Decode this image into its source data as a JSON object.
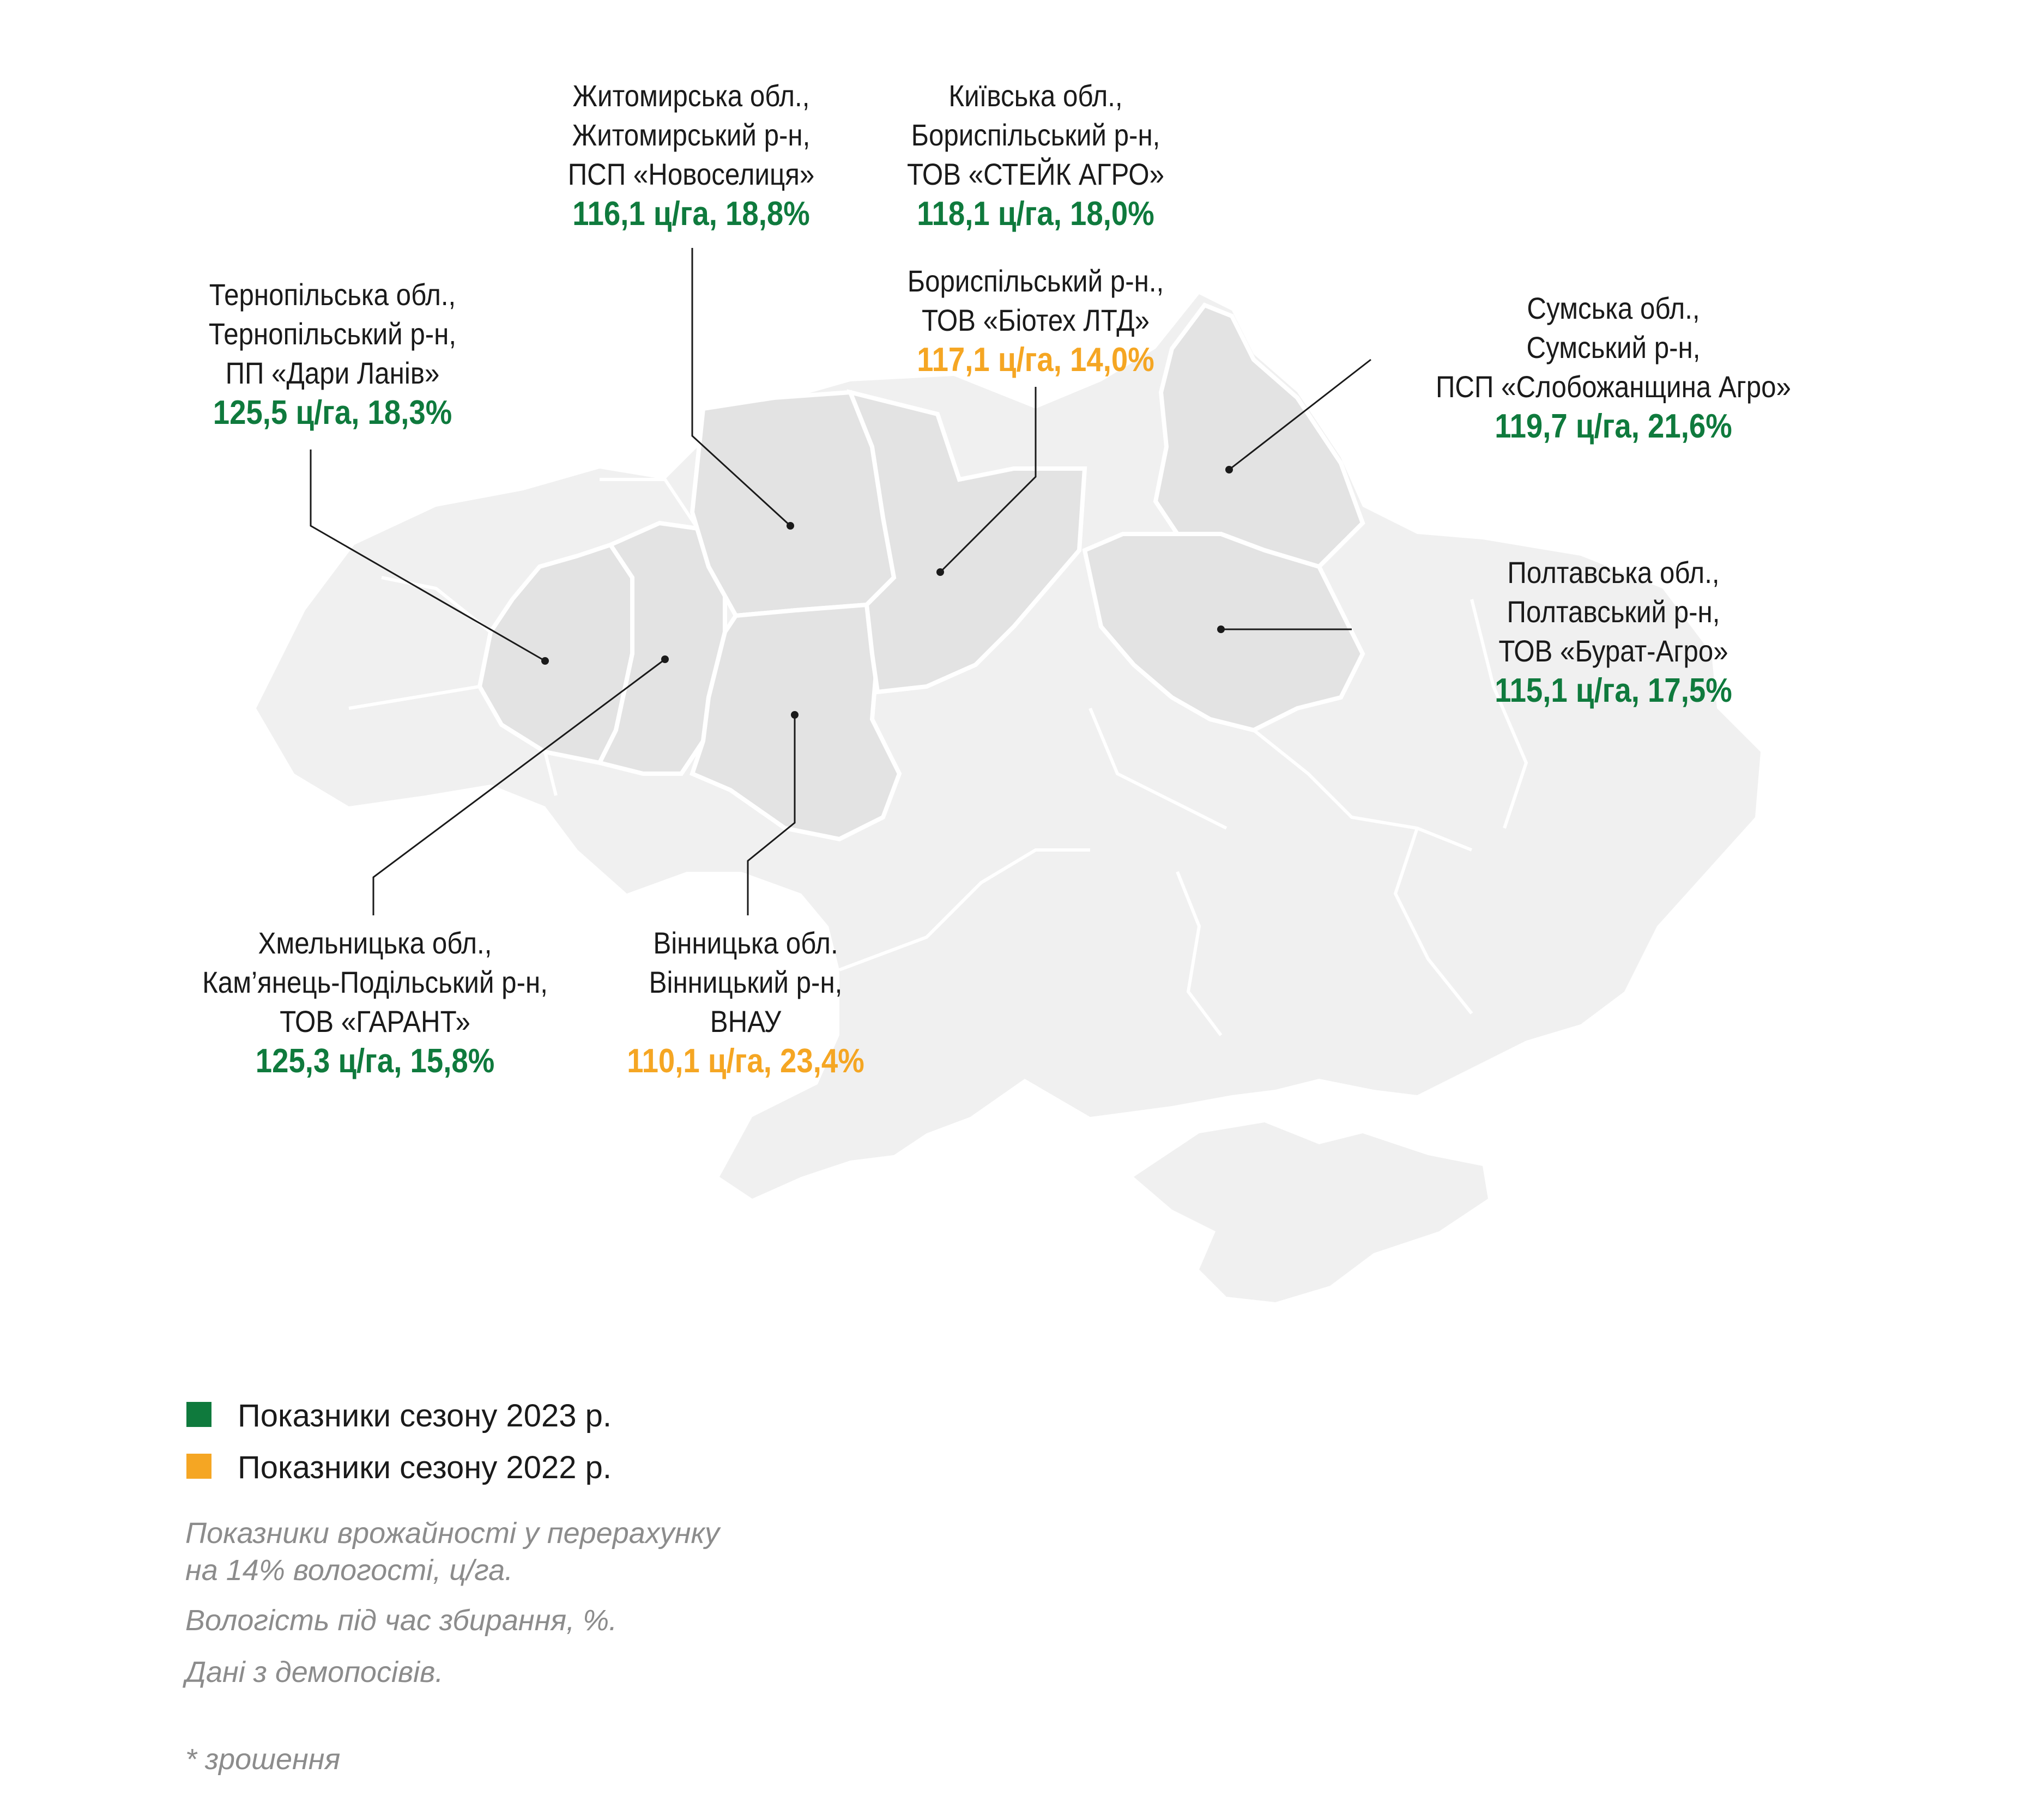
{
  "colors": {
    "season_2023": "#0f7a3d",
    "season_2022": "#f5a623",
    "map_base": "#f0f0f0",
    "map_highlight": "#e3e3e3",
    "border": "#ffffff",
    "leader": "#1a1a1a"
  },
  "callouts": {
    "zhytomyr": {
      "lines": [
        "Житомирська обл.,",
        "Житомирський р-н,",
        "ПСП «Новоселиця»"
      ],
      "value": "116,1 ц/га, 18,8%",
      "season": "2023"
    },
    "kyiv": {
      "lines": [
        "Київська обл.,",
        "Бориспільський р-н,",
        "ТОВ «СТЕЙК АГРО»"
      ],
      "value": "118,1 ц/га, 18,0%",
      "season": "2023"
    },
    "kyiv_biotech": {
      "lines": [
        "Бориспільський р-н.,",
        "ТОВ «Біотех ЛТД»"
      ],
      "value": "117,1 ц/га, 14,0%",
      "season": "2022"
    },
    "ternopil": {
      "lines": [
        "Тернопільська обл.,",
        "Тернопільський р-н,",
        "ПП «Дари Ланів»"
      ],
      "value": "125,5 ц/га, 18,3%",
      "season": "2023"
    },
    "sumy": {
      "lines": [
        "Сумська обл.,",
        "Сумський р-н,",
        "ПСП «Слобожанщина Агро»"
      ],
      "value": "119,7 ц/га, 21,6%",
      "season": "2023"
    },
    "poltava": {
      "lines": [
        "Полтавська обл.,",
        "Полтавський р-н,",
        "ТОВ «Бурат-Агро»"
      ],
      "value": "115,1 ц/га, 17,5%",
      "season": "2023"
    },
    "khmelnytskyi": {
      "lines": [
        "Хмельницька обл.,",
        "Кам’янець-Подільський р-н,",
        "ТОВ «ГАРАНТ»"
      ],
      "value": "125,3 ц/га, 15,8%",
      "season": "2023"
    },
    "vinnytsia": {
      "lines": [
        "Вінницька обл.",
        "Вінницький р-н,",
        "ВНАУ"
      ],
      "value": "110,1 ц/га, 23,4%",
      "season": "2022"
    }
  },
  "legend": {
    "item_2023": "Показники сезону 2023 р.",
    "item_2022": "Показники сезону 2022 р."
  },
  "notes": {
    "line1": "Показники врожайності у перерахунку",
    "line2": "на 14% вологості, ц/га.",
    "line3": "Вологість під час збирання, %.",
    "line4": "Дані з демопосівів.",
    "footnote": "* зрошення"
  }
}
